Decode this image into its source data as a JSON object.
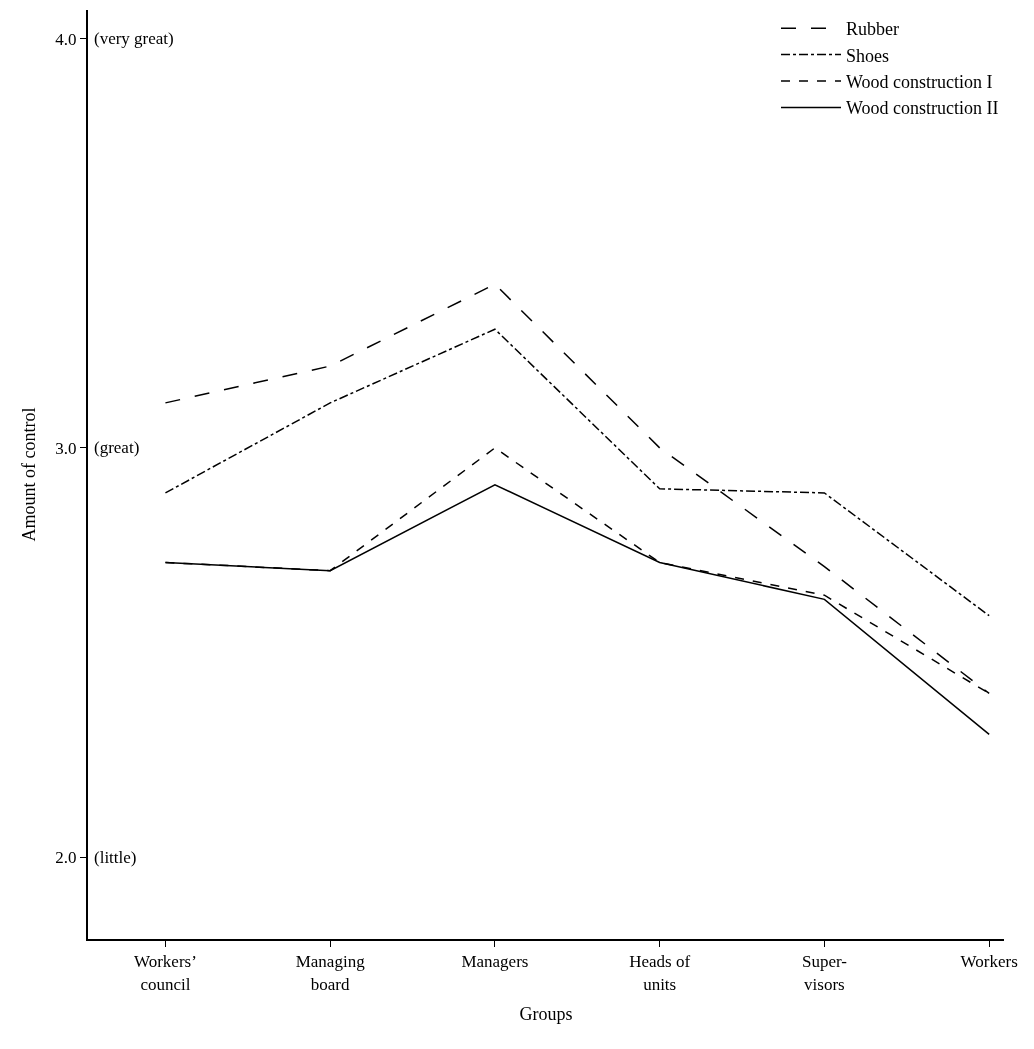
{
  "chart_data": {
    "type": "line",
    "xlabel": "Groups",
    "ylabel": "Amount of control",
    "categories": [
      "Workers’\ncouncil",
      "Managing\nboard",
      "Managers",
      "Heads of\nunits",
      "Super-\nvisors",
      "Workers"
    ],
    "series": [
      {
        "name": "Rubber",
        "color": "#000000",
        "line_style": "dashed",
        "values": [
          3.11,
          3.2,
          3.4,
          3.0,
          2.71,
          2.4
        ]
      },
      {
        "name": "Shoes",
        "color": "#000000",
        "line_style": "dashdot",
        "values": [
          2.89,
          3.11,
          3.29,
          2.9,
          2.89,
          2.59
        ]
      },
      {
        "name": "Wood construction I",
        "color": "#000000",
        "line_style": "dotted",
        "values": [
          2.72,
          2.7,
          3.0,
          2.72,
          2.64,
          2.4
        ]
      },
      {
        "name": "Wood construction II",
        "color": "#000000",
        "line_style": "solid",
        "values": [
          2.72,
          2.7,
          2.91,
          2.72,
          2.63,
          2.3
        ]
      }
    ],
    "ylim": [
      1.8,
      4.07
    ],
    "yticks": [
      {
        "value": 2.0,
        "label": "2.0"
      },
      {
        "value": 3.0,
        "label": "3.0"
      },
      {
        "value": 4.0,
        "label": "4.0"
      }
    ],
    "annotations": [
      "(little)",
      "(great)",
      "(very great)"
    ],
    "legend": "top right",
    "marker": "none"
  }
}
